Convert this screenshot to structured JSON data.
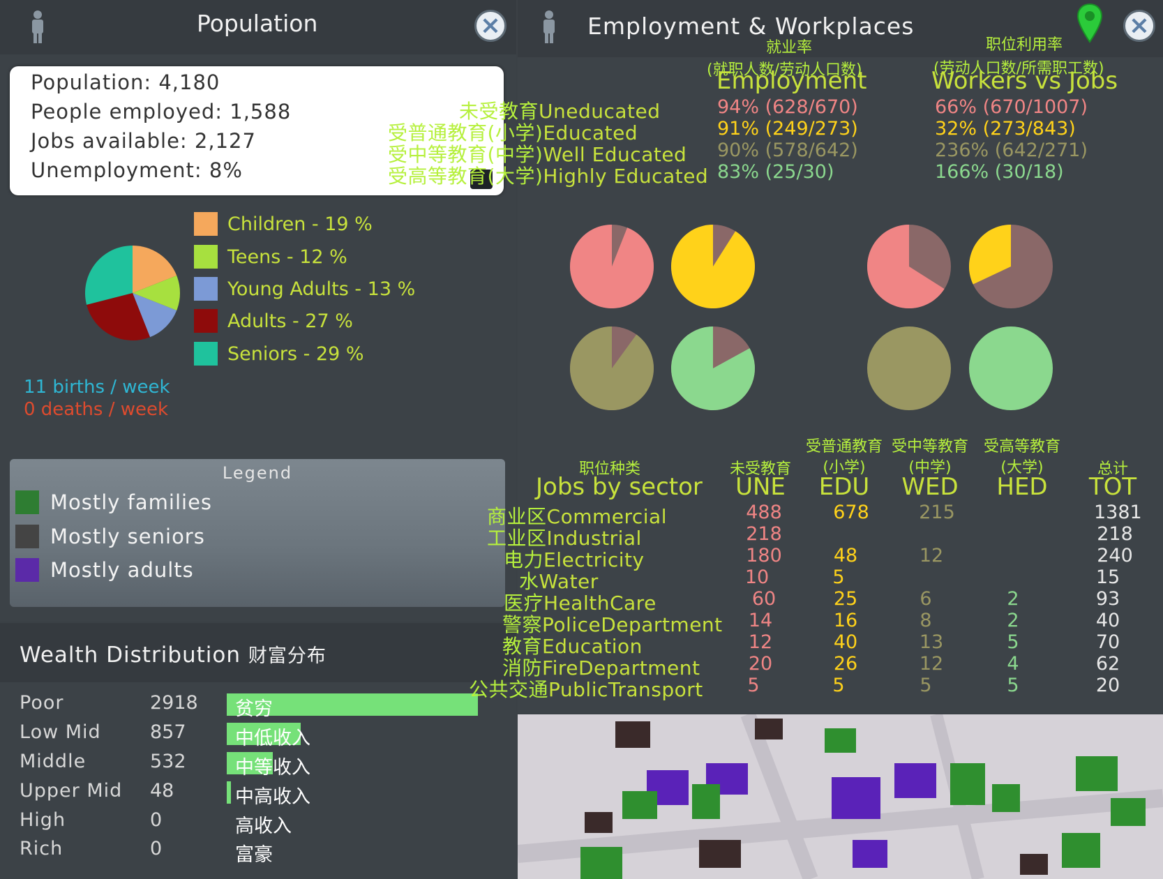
{
  "population": {
    "title": "Population",
    "stats": {
      "population": "Population: 4,180",
      "employed": "People employed: 1,588",
      "jobs": "Jobs available: 2,127",
      "unemployment": "Unemployment: 8%"
    },
    "age_chart": {
      "type": "pie",
      "slices": [
        {
          "label": "Children - 19 %",
          "value": 19,
          "color": "#f5a85c"
        },
        {
          "label": "Teens - 12 %",
          "value": 12,
          "color": "#a7e03f"
        },
        {
          "label": "Young Adults - 13 %",
          "value": 13,
          "color": "#7c9ad6"
        },
        {
          "label": "Adults - 27 %",
          "value": 27,
          "color": "#8e0b0b"
        },
        {
          "label": "Seniors - 29 %",
          "value": 29,
          "color": "#1fc29d"
        }
      ]
    },
    "births": "11 births / week",
    "deaths": "0 deaths / week",
    "legend": {
      "title": "Legend",
      "items": [
        {
          "label": "Mostly families",
          "color": "#2e7d32"
        },
        {
          "label": "Mostly seniors",
          "color": "#444444"
        },
        {
          "label": "Mostly adults",
          "color": "#5b2aa8"
        }
      ]
    }
  },
  "wealth": {
    "title": "Wealth Distribution",
    "title_cn": "财富分布",
    "rows": [
      {
        "label": "Poor",
        "value": "2918",
        "count": 2918,
        "cn": "贫穷"
      },
      {
        "label": "Low Mid",
        "value": "857",
        "count": 857,
        "cn": "中低收入"
      },
      {
        "label": "Middle",
        "value": "532",
        "count": 532,
        "cn": "中等收入"
      },
      {
        "label": "Upper Mid",
        "value": "48",
        "count": 48,
        "cn": "中高收入"
      },
      {
        "label": "High",
        "value": "0",
        "count": 0,
        "cn": "高收入"
      },
      {
        "label": "Rich",
        "value": "0",
        "count": 0,
        "cn": "富豪"
      }
    ]
  },
  "employment": {
    "title": "Employment & Workplaces",
    "col_employment": {
      "cn": "就业率",
      "cn_sub": "(就职人数/劳动人口数)",
      "en": "Employment"
    },
    "col_workers": {
      "cn": "职位利用率",
      "cn_sub": "(劳动人口数/所需职工数)",
      "en": "Workers vs Jobs"
    },
    "levels": [
      {
        "cn": "未受教育",
        "en": "Uneducated",
        "employment": "94% (628/670)",
        "workers": "66% (670/1007)",
        "color": "#f08585"
      },
      {
        "cn": "受普通教育(小学)",
        "en": "Educated",
        "employment": "91% (249/273)",
        "workers": "32% (273/843)",
        "color": "#ffd21a"
      },
      {
        "cn": "受中等教育(中学)",
        "en": "Well Educated",
        "employment": "90% (578/642)",
        "workers": "236% (642/271)",
        "color": "#9a9762"
      },
      {
        "cn": "受高等教育(大学)",
        "en": "Highly Educated",
        "employment": "83% (25/30)",
        "workers": "166% (30/18)",
        "color": "#8bd88e"
      }
    ],
    "pies": {
      "employment": [
        94,
        91,
        90,
        83
      ],
      "workers": [
        66,
        32,
        100,
        100
      ]
    },
    "jobs_table": {
      "title_cn": "职位种类",
      "title": "Jobs by sector",
      "columns": [
        {
          "cn": "未受教育",
          "en": "UNE"
        },
        {
          "cn": "受普通教育 (小学)",
          "en": "EDU"
        },
        {
          "cn": "受中等教育 (中学)",
          "en": "WED"
        },
        {
          "cn": "受高等教育 (大学)",
          "en": "HED"
        },
        {
          "cn": "总计",
          "en": "TOT"
        }
      ],
      "rows": [
        {
          "cn": "商业区",
          "en": "Commercial",
          "une": "488",
          "edu": "678",
          "wed": "215",
          "hed": "",
          "tot": "1381"
        },
        {
          "cn": "工业区",
          "en": "Industrial",
          "une": "218",
          "edu": "",
          "wed": "",
          "hed": "",
          "tot": "218"
        },
        {
          "cn": "电力",
          "en": "Electricity",
          "une": "180",
          "edu": "48",
          "wed": "12",
          "hed": "",
          "tot": "240"
        },
        {
          "cn": "水",
          "en": "Water",
          "une": "10",
          "edu": "5",
          "wed": "",
          "hed": "",
          "tot": "15"
        },
        {
          "cn": "医疗",
          "en": "HealthCare",
          "une": "60",
          "edu": "25",
          "wed": "6",
          "hed": "2",
          "tot": "93"
        },
        {
          "cn": "警察",
          "en": "PoliceDepartment",
          "une": "14",
          "edu": "16",
          "wed": "8",
          "hed": "2",
          "tot": "40"
        },
        {
          "cn": "教育",
          "en": "Education",
          "une": "12",
          "edu": "40",
          "wed": "13",
          "hed": "5",
          "tot": "70"
        },
        {
          "cn": "消防",
          "en": "FireDepartment",
          "une": "20",
          "edu": "26",
          "wed": "12",
          "hed": "4",
          "tot": "62"
        },
        {
          "cn": "公共交通",
          "en": "PublicTransport",
          "une": "5",
          "edu": "5",
          "wed": "5",
          "hed": "5",
          "tot": "20"
        }
      ]
    }
  },
  "icons": {
    "person": "person-icon",
    "close": "close-icon",
    "location": "location-pin-icon"
  }
}
